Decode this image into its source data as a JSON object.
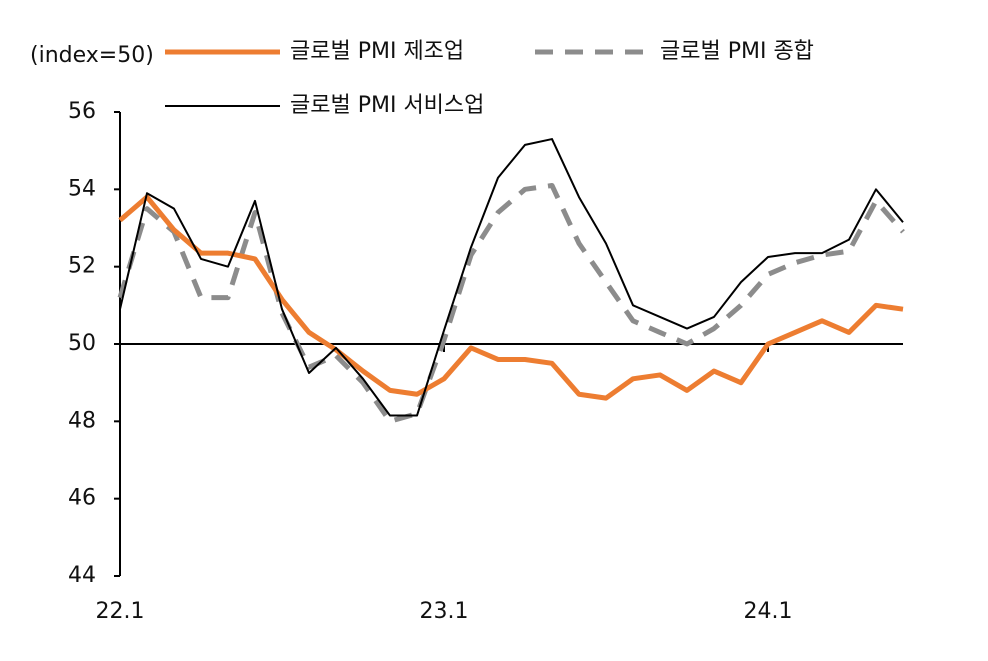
{
  "chart_data": {
    "type": "line",
    "ylabel": "(index=50)",
    "categories": [
      "22.1",
      null,
      null,
      null,
      null,
      null,
      null,
      null,
      null,
      null,
      null,
      null,
      "23.1",
      null,
      null,
      null,
      null,
      null,
      null,
      null,
      null,
      null,
      null,
      null,
      "24.1",
      null,
      null,
      null,
      null,
      null
    ],
    "series": [
      {
        "name": "글로벌 PMI 제조업",
        "color": "#ed7d31",
        "style": "solid",
        "width": 5,
        "values": [
          53.2,
          53.8,
          52.95,
          52.35,
          52.35,
          52.2,
          51.15,
          50.3,
          49.85,
          49.3,
          48.8,
          48.7,
          49.1,
          49.9,
          49.6,
          49.6,
          49.5,
          48.7,
          48.6,
          49.1,
          49.2,
          48.8,
          49.3,
          49.0,
          50.0,
          50.3,
          50.6,
          50.3,
          51.0,
          50.9
        ]
      },
      {
        "name": "글로벌 PMI 종합",
        "color": "#8c8c8c",
        "style": "dashed",
        "width": 5,
        "values": [
          51.2,
          53.5,
          52.9,
          51.2,
          51.2,
          53.4,
          50.8,
          49.4,
          49.7,
          49.0,
          48.0,
          48.2,
          50.1,
          52.3,
          53.4,
          54.0,
          54.1,
          52.6,
          51.6,
          50.6,
          50.3,
          50.0,
          50.4,
          51.0,
          51.8,
          52.1,
          52.3,
          52.4,
          53.7,
          52.9
        ]
      },
      {
        "name": "글로벌 PMI 서비스업",
        "color": "#000000",
        "style": "solid",
        "width": 2,
        "values": [
          50.9,
          53.9,
          53.5,
          52.2,
          52.0,
          53.7,
          50.9,
          49.25,
          49.9,
          49.1,
          48.15,
          48.15,
          50.35,
          52.5,
          54.3,
          55.15,
          55.3,
          53.8,
          52.6,
          51.0,
          50.7,
          50.4,
          50.7,
          51.6,
          52.25,
          52.35,
          52.35,
          52.7,
          54.0,
          53.15
        ]
      }
    ],
    "baseline": 50,
    "ylim": [
      44,
      56
    ],
    "yticks": [
      44,
      46,
      48,
      50,
      52,
      54,
      56
    ]
  }
}
